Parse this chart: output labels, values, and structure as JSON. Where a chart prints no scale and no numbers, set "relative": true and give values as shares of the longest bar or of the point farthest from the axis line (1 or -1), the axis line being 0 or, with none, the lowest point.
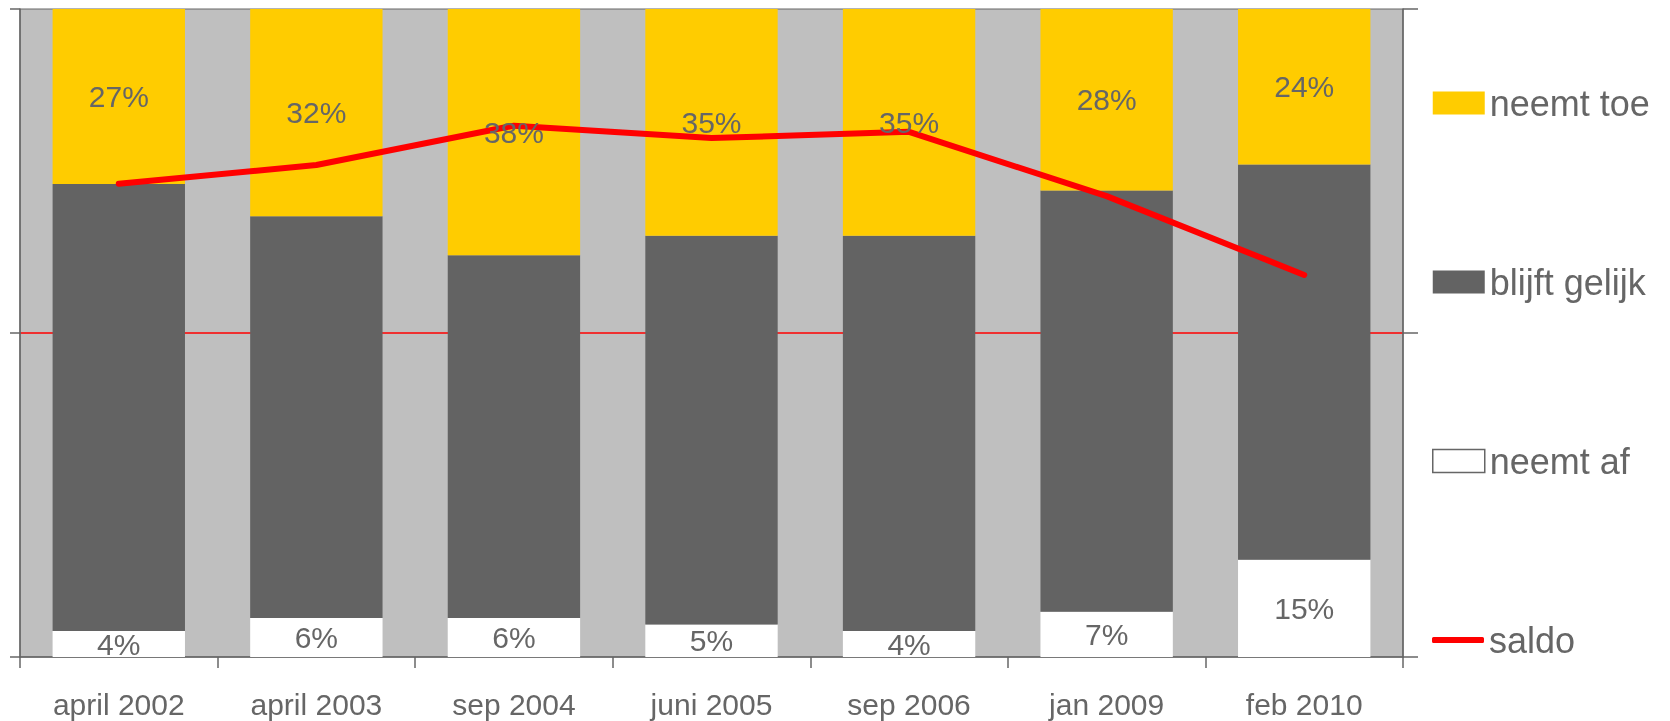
{
  "chart_data": [
    {
      "type": "bar",
      "stacked": true,
      "categories": [
        "april 2002",
        "april 2003",
        "sep 2004",
        "juni 2005",
        "sep 2006",
        "jan 2009",
        "feb 2010"
      ],
      "series": [
        {
          "name": "neemt af",
          "color": "#ffffff",
          "values": [
            4,
            6,
            6,
            5,
            4,
            7,
            15
          ],
          "value_labels": [
            "4%",
            "6%",
            "6%",
            "5%",
            "4%",
            "7%",
            "15%"
          ]
        },
        {
          "name": "blijft gelijk",
          "color": "#636363",
          "values": [
            69,
            62,
            56,
            60,
            61,
            65,
            61
          ]
        },
        {
          "name": "neemt toe",
          "color": "#ffcc00",
          "values": [
            27,
            32,
            38,
            35,
            35,
            28,
            24
          ],
          "value_labels": [
            "27%",
            "32%",
            "38%",
            "35%",
            "35%",
            "28%",
            "24%"
          ]
        }
      ],
      "ylim": [
        0,
        100
      ],
      "yticks": [
        {
          "value": 0,
          "label": null
        },
        {
          "value": 50,
          "label": null
        },
        {
          "value": 100,
          "label": null
        }
      ],
      "tick_labels": "x",
      "legend": "right"
    },
    {
      "type": "line",
      "relative": true,
      "categories": [
        null,
        null,
        null,
        null,
        null,
        null,
        null
      ],
      "series": [
        {
          "name": "saldo",
          "color": "#ff0000",
          "values": [
            0.72,
            0.81,
            1,
            0.94,
            0.97,
            0.66,
            0.28
          ]
        }
      ],
      "legend": "right",
      "marker": "none",
      "line_style": "solid"
    }
  ]
}
